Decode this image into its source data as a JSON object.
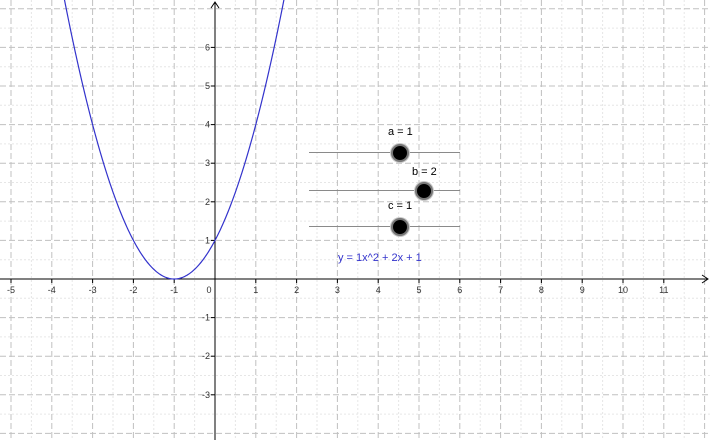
{
  "axes": {
    "x_ticks": [
      "-5",
      "-4",
      "-3",
      "-2",
      "-1",
      "0",
      "1",
      "2",
      "3",
      "4",
      "5",
      "6",
      "7",
      "8",
      "9",
      "10",
      "11"
    ],
    "y_ticks_positive": [
      "1",
      "2",
      "3",
      "4",
      "5",
      "6"
    ],
    "y_ticks_negative": [
      "-1",
      "-2",
      "-3"
    ],
    "x_range": [
      -5.2,
      12.0
    ],
    "y_range": [
      -4.0,
      7.0
    ],
    "grid": true,
    "minor_grid": true
  },
  "sliders": [
    {
      "caption": "a = 1",
      "name": "a",
      "value": 1,
      "min": -5,
      "max": 5
    },
    {
      "caption": "b = 2",
      "name": "b",
      "value": 2,
      "min": -5,
      "max": 5
    },
    {
      "caption": "c = 1",
      "name": "c",
      "value": 1,
      "min": -5,
      "max": 5
    }
  ],
  "function_label": "y = 1x^2 + 2x + 1",
  "colors": {
    "curve": "#3333cc",
    "function_label": "#3333cc",
    "axis": "#000000",
    "major_grid": "#c0c0c0",
    "minor_grid": "#e6e6e6"
  }
}
